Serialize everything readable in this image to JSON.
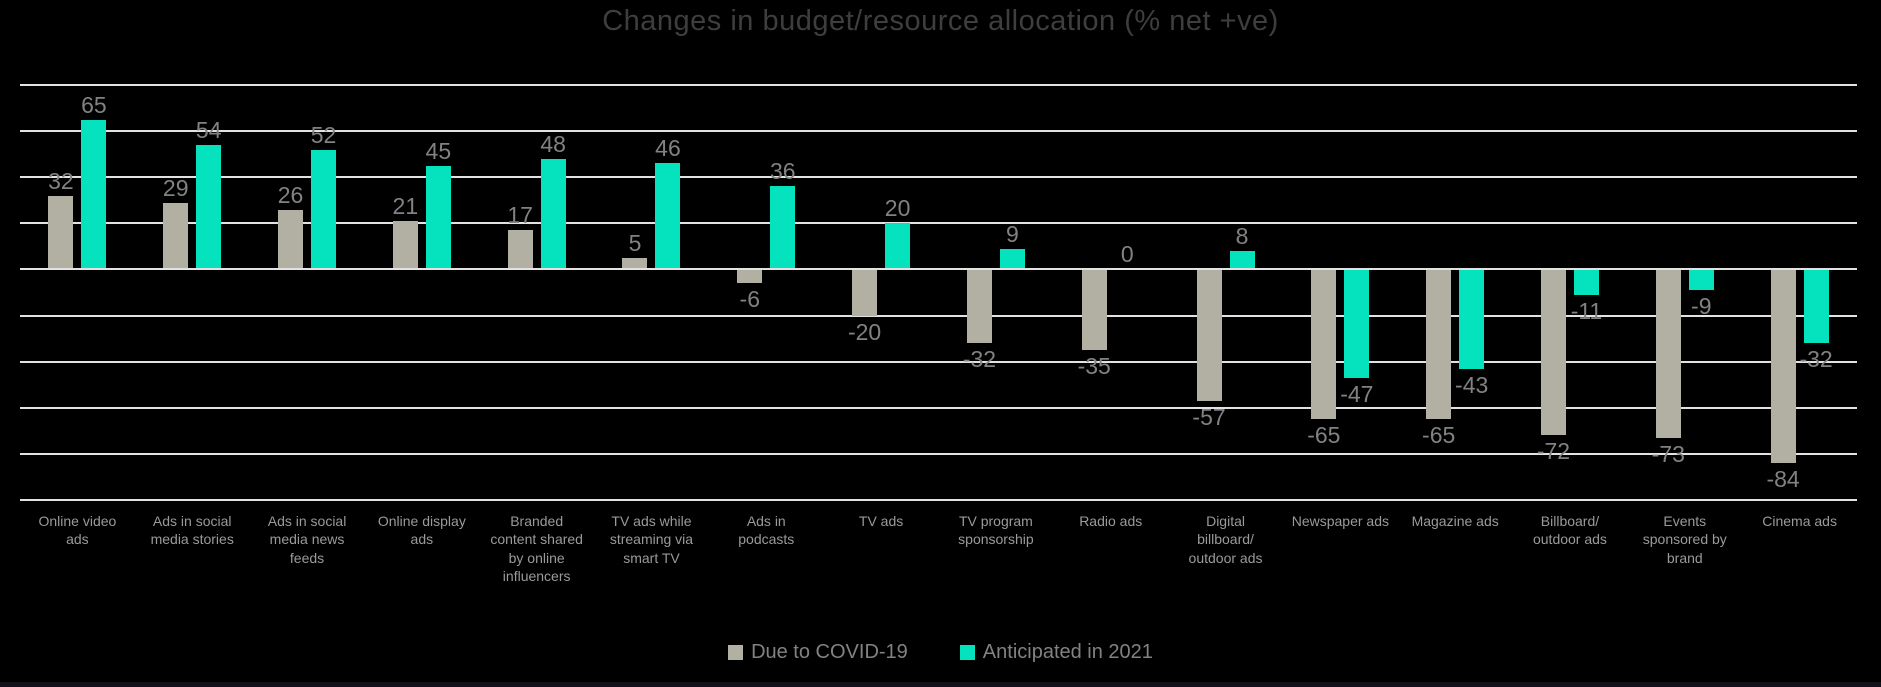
{
  "title": "Changes in budget/resource allocation (% net +ve)",
  "colors": {
    "background": "#000000",
    "title_text": "#3e3e3e",
    "gridline": "#e2e2e2",
    "value_label": "#828282",
    "category_label": "#9a9a9a",
    "series_covid": "#b1b0a2",
    "series_anticipated": "#04e3bd"
  },
  "legend": {
    "position": "bottom",
    "items": [
      {
        "label": "Due to COVID-19",
        "color": "#b1b0a2"
      },
      {
        "label": "Anticipated in 2021",
        "color": "#04e3bd"
      }
    ]
  },
  "chart_data": {
    "type": "bar",
    "title": "Changes in budget/resource allocation (% net +ve)",
    "categories": [
      "Online video ads",
      "Ads in social media stories",
      "Ads in social media news feeds",
      "Online display ads",
      "Branded content shared by online influencers",
      "TV ads while streaming via smart TV",
      "Ads in podcasts",
      "TV ads",
      "TV program sponsorship",
      "Radio ads",
      "Digital billboard/outdoor ads",
      "Newspaper ads",
      "Magazine ads",
      "Billboard/outdoor ads",
      "Events sponsored by brand",
      "Cinema ads"
    ],
    "series": [
      {
        "name": "Due to COVID-19",
        "color": "#b1b0a2",
        "values": [
          32,
          29,
          26,
          21,
          17,
          5,
          -6,
          -20,
          -32,
          -35,
          -57,
          -65,
          -65,
          -72,
          -73,
          -84
        ]
      },
      {
        "name": "Anticipated in 2021",
        "color": "#04e3bd",
        "values": [
          65,
          54,
          52,
          45,
          48,
          46,
          36,
          20,
          9,
          0,
          8,
          -47,
          -43,
          -11,
          -9,
          -32
        ]
      }
    ],
    "xlabel": "",
    "ylabel": "",
    "ylim": [
      -100,
      80
    ],
    "grid_step": 20,
    "grid": true,
    "value_labels": true,
    "legend_position": "bottom"
  }
}
